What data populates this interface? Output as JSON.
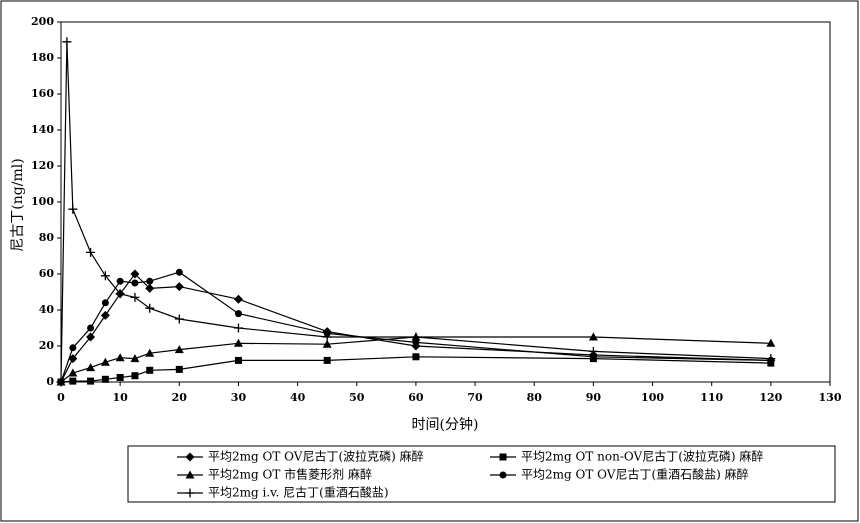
{
  "chart_data": {
    "type": "line",
    "x_label": "时间(分钟)",
    "y_label": "尼古丁(ng/ml)",
    "xlim": [
      0,
      130
    ],
    "xticks": [
      0,
      10,
      20,
      30,
      40,
      50,
      60,
      70,
      80,
      90,
      100,
      110,
      120,
      130
    ],
    "ylim": [
      0,
      200
    ],
    "yticks": [
      0,
      20,
      40,
      60,
      80,
      100,
      120,
      140,
      160,
      180,
      200
    ],
    "series": [
      {
        "name": "平均2mg OT OV尼古丁(波拉克磷) 麻醉",
        "color": "#000000",
        "marker": "diamond",
        "x": [
          0,
          2,
          5,
          7.5,
          10,
          12.5,
          15,
          20,
          30,
          45,
          60,
          90,
          120
        ],
        "values": [
          0,
          13,
          25,
          37,
          49,
          60,
          52,
          53,
          46,
          28,
          20,
          15,
          12
        ]
      },
      {
        "name": "平均2mg OT non-OV尼古丁(波拉克磷) 麻醉",
        "color": "#000000",
        "marker": "square",
        "x": [
          0,
          2,
          5,
          7.5,
          10,
          12.5,
          15,
          20,
          30,
          45,
          60,
          90,
          120
        ],
        "values": [
          0,
          0.5,
          0.5,
          1.5,
          2.5,
          3.5,
          6.5,
          7,
          12,
          12,
          14,
          13,
          10.5
        ]
      },
      {
        "name": "平均2mg OT 市售菱形剂 麻醉",
        "color": "#000000",
        "marker": "triangle",
        "x": [
          0,
          2,
          5,
          7.5,
          10,
          12.5,
          15,
          20,
          30,
          45,
          60,
          90,
          120
        ],
        "values": [
          0,
          5,
          8,
          11,
          13.5,
          13,
          16,
          18,
          21.5,
          21,
          25,
          25,
          21.5
        ]
      },
      {
        "name": "平均2mg OT OV尼古丁(重酒石酸盐) 麻醉",
        "color": "#000000",
        "marker": "circle",
        "x": [
          0,
          2,
          5,
          7.5,
          10,
          12.5,
          15,
          20,
          30,
          45,
          60,
          90,
          120
        ],
        "values": [
          0,
          19,
          30,
          44,
          56,
          55,
          56,
          61,
          38,
          27,
          22,
          14,
          12
        ]
      },
      {
        "name": "平均2mg i.v. 尼古丁(重酒石酸盐)",
        "color": "#000000",
        "marker": "plus",
        "x": [
          0,
          1,
          2,
          5,
          7.5,
          10,
          12.5,
          15,
          20,
          30,
          45,
          60,
          90,
          120
        ],
        "values": [
          0,
          189,
          96,
          72,
          59,
          49,
          47,
          41,
          35,
          30,
          25,
          25,
          17,
          13
        ]
      }
    ]
  }
}
